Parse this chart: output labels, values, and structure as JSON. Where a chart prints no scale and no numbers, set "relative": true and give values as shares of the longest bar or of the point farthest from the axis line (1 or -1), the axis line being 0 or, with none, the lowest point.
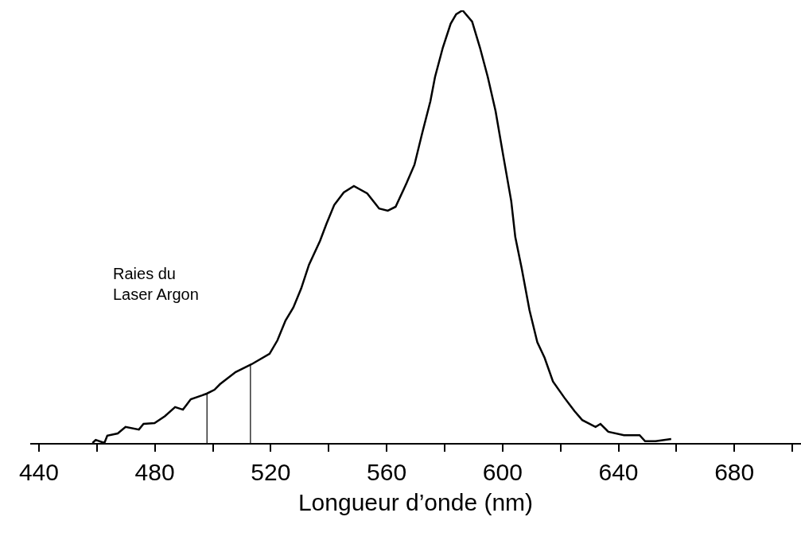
{
  "chart_data": {
    "type": "line",
    "relative": true,
    "xlabel": "Longueur d’onde (nm)",
    "x": [
      458.5,
      459.6,
      462.6,
      463.6,
      467.2,
      469.9,
      474.5,
      476.1,
      479.9,
      483.5,
      487.0,
      489.7,
      492.4,
      496.3,
      497.9,
      500.6,
      502.5,
      507.9,
      513.4,
      519.6,
      522.3,
      525.1,
      527.8,
      530.5,
      533.2,
      537.0,
      539.2,
      541.9,
      545.2,
      548.7,
      553.3,
      557.4,
      560.4,
      563.1,
      566.9,
      569.6,
      572.3,
      575.1,
      576.7,
      579.4,
      582.1,
      584.0,
      586.2,
      589.5,
      592.2,
      594.9,
      597.6,
      600.3,
      603.0,
      604.4,
      606.6,
      609.3,
      612.0,
      614.5,
      617.4,
      621.3,
      624.8,
      627.5,
      632.1,
      633.8,
      636.5,
      641.9,
      644.6,
      647.3,
      649.2,
      652.8,
      658.2
    ],
    "series": [
      {
        "color": "#000000",
        "values": [
          0.0,
          0.007,
          0.0,
          0.017,
          0.022,
          0.037,
          0.031,
          0.044,
          0.046,
          0.062,
          0.083,
          0.077,
          0.101,
          0.11,
          0.114,
          0.123,
          0.136,
          0.164,
          0.182,
          0.206,
          0.237,
          0.283,
          0.313,
          0.357,
          0.412,
          0.467,
          0.506,
          0.55,
          0.579,
          0.594,
          0.577,
          0.542,
          0.537,
          0.546,
          0.601,
          0.643,
          0.717,
          0.79,
          0.846,
          0.914,
          0.969,
          0.991,
          1.0,
          0.974,
          0.914,
          0.846,
          0.767,
          0.662,
          0.559,
          0.476,
          0.404,
          0.307,
          0.233,
          0.197,
          0.142,
          0.105,
          0.074,
          0.053,
          0.037,
          0.044,
          0.026,
          0.018,
          0.018,
          0.018,
          0.004,
          0.004,
          0.009
        ]
      }
    ],
    "xlim": [
      437,
      703
    ],
    "xticks": [
      440,
      {
        "value": 460,
        "label": null
      },
      480,
      {
        "value": 500,
        "label": null
      },
      520,
      {
        "value": 540,
        "label": null
      },
      560,
      {
        "value": 580,
        "label": null
      },
      600,
      {
        "value": 620,
        "label": null
      },
      640,
      {
        "value": 660,
        "label": null
      },
      680,
      {
        "value": 700,
        "label": null
      }
    ],
    "ref_lines": [
      {
        "axis": "x",
        "value": 498,
        "color": "#000000"
      },
      {
        "axis": "x",
        "value": 513,
        "color": "#000000"
      }
    ],
    "annotations": [
      "Raies du\nLaser Argon"
    ],
    "marker": "none",
    "line_style": "solid"
  }
}
